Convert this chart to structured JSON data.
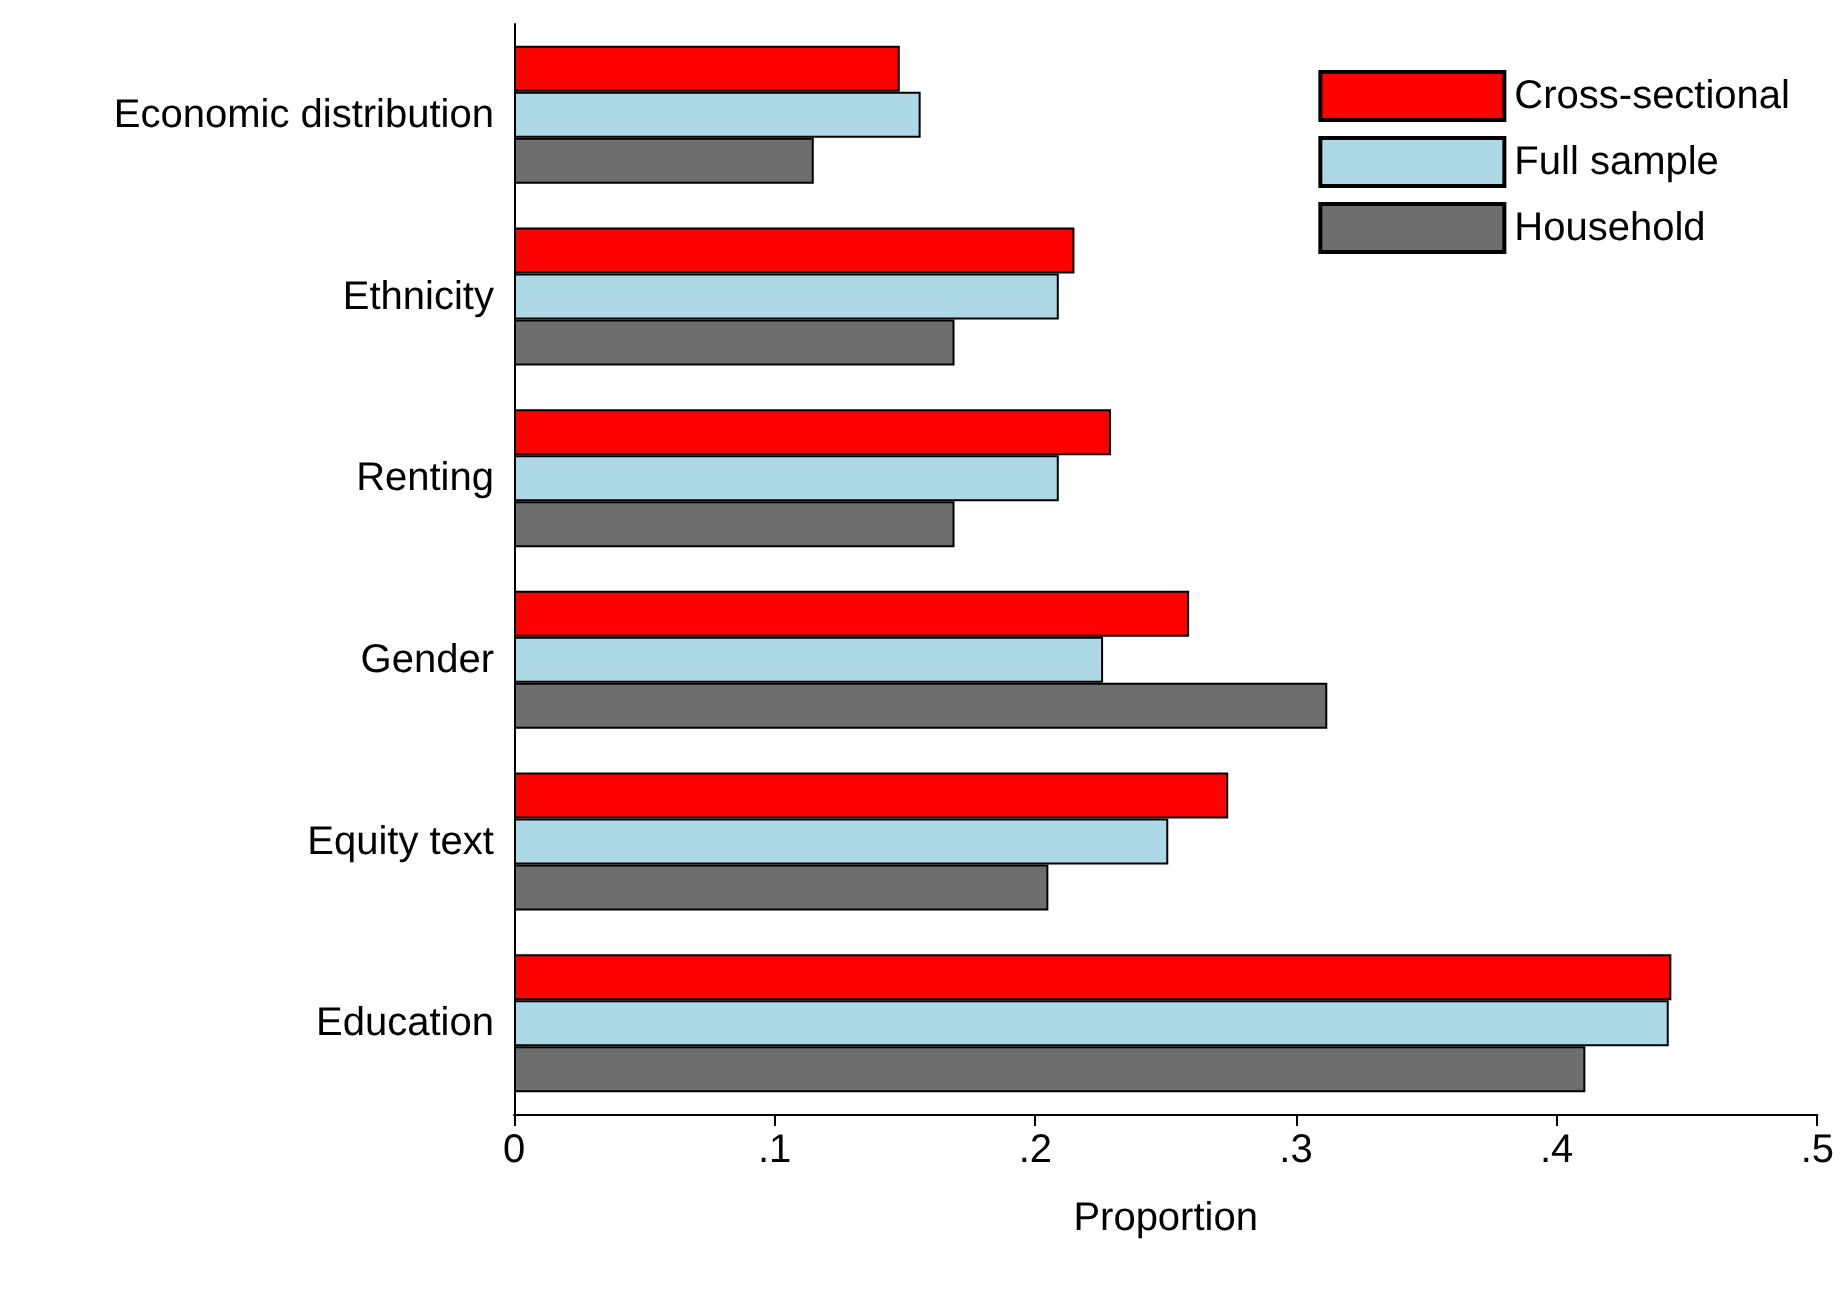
{
  "chart_data": {
    "type": "bar",
    "orientation": "horizontal",
    "xlabel": "Proportion",
    "categories": [
      "Economic distribution",
      "Ethnicity",
      "Renting",
      "Gender",
      "Equity text",
      "Education"
    ],
    "series": [
      {
        "name": "Cross-sectional",
        "color": "#ff0000",
        "values": [
          0.148,
          0.215,
          0.229,
          0.259,
          0.274,
          0.444
        ]
      },
      {
        "name": "Full sample",
        "color": "#add8e6",
        "values": [
          0.156,
          0.209,
          0.209,
          0.226,
          0.251,
          0.443
        ]
      },
      {
        "name": "Household",
        "color": "#6e6e6e",
        "values": [
          0.115,
          0.169,
          0.169,
          0.312,
          0.205,
          0.411
        ]
      }
    ],
    "xlim": [
      0,
      0.5
    ],
    "xticks": [
      0,
      {
        "value": 0.1,
        "label": ".1"
      },
      {
        "value": 0.2,
        "label": ".2"
      },
      {
        "value": 0.3,
        "label": ".3"
      },
      {
        "value": 0.4,
        "label": ".4"
      },
      {
        "value": 0.5,
        "label": ".5"
      }
    ],
    "grid": false,
    "legend": "top right"
  }
}
